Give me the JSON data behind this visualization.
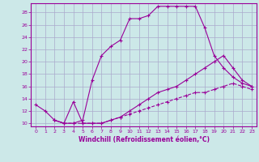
{
  "background_color": "#cce8e8",
  "grid_color": "#aaaacc",
  "line_color": "#990099",
  "xlabel": "Windchill (Refroidissement éolien,°C)",
  "xlim": [
    -0.5,
    23.5
  ],
  "ylim": [
    9.5,
    29.5
  ],
  "yticks": [
    10,
    12,
    14,
    16,
    18,
    20,
    22,
    24,
    26,
    28
  ],
  "xticks": [
    0,
    1,
    2,
    3,
    4,
    5,
    6,
    7,
    8,
    9,
    10,
    11,
    12,
    13,
    14,
    15,
    16,
    17,
    18,
    19,
    20,
    21,
    22,
    23
  ],
  "line1_x": [
    0,
    1,
    2,
    3,
    4,
    5,
    6,
    7,
    8,
    9,
    10,
    11,
    12,
    13,
    14,
    15,
    16,
    17,
    18,
    19,
    20,
    21,
    22,
    23
  ],
  "line1_y": [
    13,
    12,
    10.5,
    10,
    10,
    10.5,
    17,
    21,
    22.5,
    23.5,
    27,
    27,
    27.5,
    29,
    29,
    29,
    29,
    29,
    25.5,
    21,
    19,
    17.5,
    16.5,
    16
  ],
  "line2_x": [
    2,
    3,
    4,
    5,
    6,
    7,
    8,
    9,
    10,
    11,
    12,
    13,
    14,
    15,
    16,
    17,
    18,
    19,
    20,
    21,
    22,
    23
  ],
  "line2_y": [
    10.5,
    10,
    13.5,
    10,
    10,
    10,
    10.5,
    11,
    12,
    13,
    14,
    15,
    15.5,
    16,
    17,
    18,
    19,
    20,
    21,
    19,
    17,
    16
  ],
  "line3_x": [
    2,
    3,
    4,
    5,
    6,
    7,
    8,
    9,
    10,
    11,
    12,
    13,
    14,
    15,
    16,
    17,
    18,
    19,
    20,
    21,
    22,
    23
  ],
  "line3_y": [
    10.5,
    10,
    10,
    10,
    10,
    10,
    10.5,
    11,
    11.5,
    12,
    12.5,
    13,
    13.5,
    14,
    14.5,
    15,
    15,
    15.5,
    16,
    16.5,
    16,
    15.5
  ]
}
